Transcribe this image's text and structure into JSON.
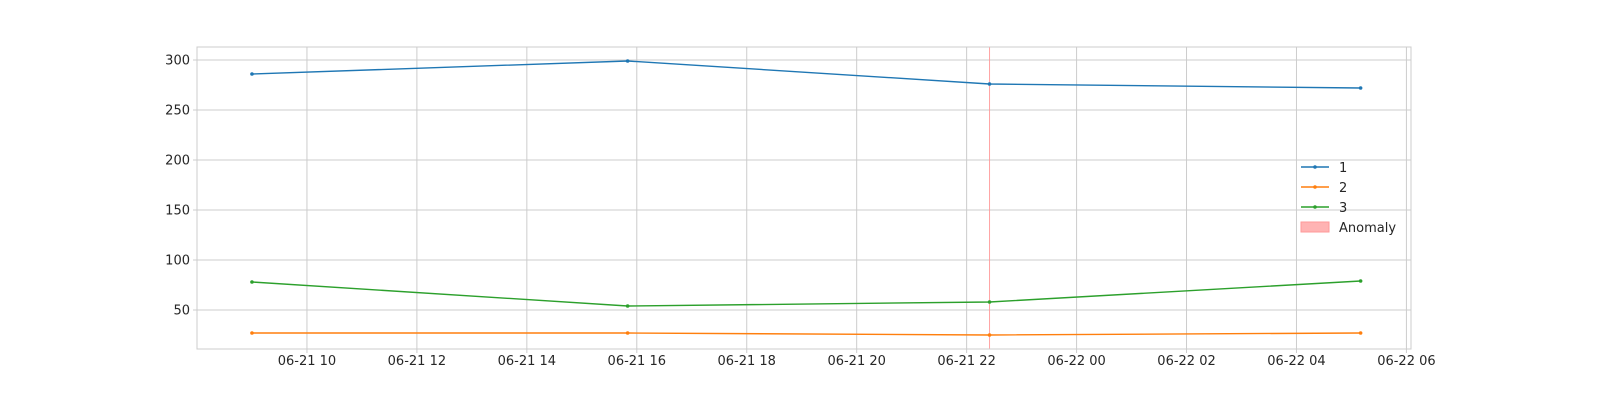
{
  "chart_data": {
    "type": "line",
    "title": "",
    "xlabel": "",
    "ylabel": "",
    "x": [
      "2022-06-21 09:00",
      "2022-06-21 15:50",
      "2022-06-21 22:25",
      "2022-06-22 05:10"
    ],
    "series": [
      {
        "name": "1",
        "values": [
          286,
          299,
          276,
          272
        ],
        "color": "#1f77b4"
      },
      {
        "name": "2",
        "values": [
          27,
          27,
          25,
          27
        ],
        "color": "#ff7f0e"
      },
      {
        "name": "3",
        "values": [
          78,
          54,
          58,
          79
        ],
        "color": "#2ca02c"
      }
    ],
    "anomalies": [
      {
        "name": "Anomaly",
        "start": "2022-06-21 22:25",
        "end": "2022-06-21 22:25",
        "color": "#ff9999"
      }
    ],
    "x_ticks": [
      {
        "value": "2022-06-21 10:00",
        "label": "06-21 10"
      },
      {
        "value": "2022-06-21 12:00",
        "label": "06-21 12"
      },
      {
        "value": "2022-06-21 14:00",
        "label": "06-21 14"
      },
      {
        "value": "2022-06-21 16:00",
        "label": "06-21 16"
      },
      {
        "value": "2022-06-21 18:00",
        "label": "06-21 18"
      },
      {
        "value": "2022-06-21 20:00",
        "label": "06-21 20"
      },
      {
        "value": "2022-06-21 22:00",
        "label": "06-21 22"
      },
      {
        "value": "2022-06-22 00:00",
        "label": "06-22 00"
      },
      {
        "value": "2022-06-22 02:00",
        "label": "06-22 02"
      },
      {
        "value": "2022-06-22 04:00",
        "label": "06-22 04"
      },
      {
        "value": "2022-06-22 06:00",
        "label": "06-22 06"
      }
    ],
    "xlim": [
      "2022-06-21 08:00",
      "2022-06-22 06:05"
    ],
    "y_ticks": [
      50,
      100,
      150,
      200,
      250,
      300
    ],
    "ylim": [
      11,
      313
    ],
    "grid": true,
    "legend_position": "center-right"
  }
}
